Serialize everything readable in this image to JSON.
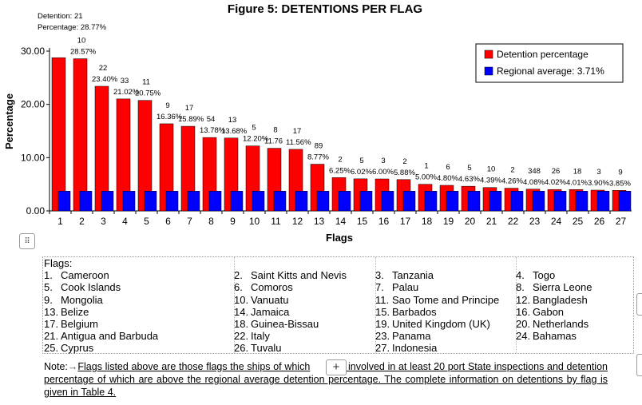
{
  "chart_data": {
    "type": "bar",
    "title": "Figure 5: DETENTIONS PER FLAG",
    "xlabel": "Flags",
    "ylabel": "Percentage",
    "ylim": [
      0,
      30
    ],
    "y_ticks": [
      "0.00",
      "10.00",
      "20.00",
      "30.00"
    ],
    "categories": [
      "1",
      "2",
      "3",
      "4",
      "5",
      "6",
      "7",
      "8",
      "9",
      "10",
      "11",
      "12",
      "13",
      "14",
      "15",
      "16",
      "17",
      "18",
      "19",
      "20",
      "21",
      "22",
      "23",
      "24",
      "25",
      "26",
      "27"
    ],
    "series": [
      {
        "name": "Detention percentage",
        "color": "#ff0000",
        "values": [
          28.77,
          28.57,
          23.4,
          21.02,
          20.75,
          16.36,
          15.89,
          13.78,
          13.68,
          12.2,
          11.76,
          11.56,
          8.77,
          6.25,
          6.02,
          6.0,
          5.88,
          5.0,
          4.8,
          4.63,
          4.39,
          4.26,
          4.08,
          4.02,
          4.01,
          3.9,
          3.85
        ]
      },
      {
        "name": "Regional average: 3.71%",
        "color": "#0000ff",
        "values": [
          3.71,
          3.71,
          3.71,
          3.71,
          3.71,
          3.71,
          3.71,
          3.71,
          3.71,
          3.71,
          3.71,
          3.71,
          3.71,
          3.71,
          3.71,
          3.71,
          3.71,
          3.71,
          3.71,
          3.71,
          3.71,
          3.71,
          3.71,
          3.71,
          3.71,
          3.71,
          3.71
        ]
      }
    ],
    "detentions": [
      "21",
      "10",
      "22",
      "33",
      "11",
      "9",
      "17",
      "54",
      "13",
      "5",
      "8",
      "17",
      "89",
      "2",
      "5",
      "3",
      "2",
      "1",
      "6",
      "5",
      "10",
      "2",
      "348",
      "26",
      "18",
      "3",
      "9"
    ],
    "percent_labels": [
      "28.77%",
      "28.57%",
      "23.40%",
      "21.02%",
      "20.75%",
      "16.36%",
      "15.89%",
      "13.78%",
      "13.68%",
      "12.20%",
      "11.76",
      "11.56%",
      "8.77%",
      "6.25%",
      "6.02%",
      "6.00%",
      "5.88%",
      "5.00%",
      "4.80%",
      "4.63%",
      "4.39%",
      "4.26%",
      "4.08%",
      "4.02%",
      "4.01%",
      "3.90%",
      "3.85%"
    ],
    "first_bar_annotation": {
      "detention": "Detention: 21",
      "percentage": "Percentage: 28.77%"
    },
    "legend_position": "top-right",
    "grid": false
  },
  "flags_table": {
    "heading": "Flags:",
    "items": [
      {
        "num": "1.",
        "name": "Cameroon"
      },
      {
        "num": "2.",
        "name": "Saint Kitts and Nevis"
      },
      {
        "num": "3.",
        "name": "Tanzania"
      },
      {
        "num": "4.",
        "name": "Togo"
      },
      {
        "num": "5.",
        "name": "Cook Islands"
      },
      {
        "num": "6.",
        "name": "Comoros"
      },
      {
        "num": "7.",
        "name": "Palau"
      },
      {
        "num": "8.",
        "name": "Sierra Leone"
      },
      {
        "num": "9.",
        "name": "Mongolia"
      },
      {
        "num": "10.",
        "name": "Vanuatu"
      },
      {
        "num": "11.",
        "name": "Sao Tome and Principe"
      },
      {
        "num": "12.",
        "name": "Bangladesh"
      },
      {
        "num": "13.",
        "name": "Belize"
      },
      {
        "num": "14.",
        "name": "Jamaica"
      },
      {
        "num": "15.",
        "name": "Barbados"
      },
      {
        "num": "16.",
        "name": "Gabon"
      },
      {
        "num": "17.",
        "name": "Belgium"
      },
      {
        "num": "18.",
        "name": "Guinea-Bissau"
      },
      {
        "num": "19.",
        "name": "United Kingdom (UK)"
      },
      {
        "num": "20.",
        "name": "Netherlands"
      },
      {
        "num": "21.",
        "name": "Antigua and Barbuda"
      },
      {
        "num": "22.",
        "name": "Italy"
      },
      {
        "num": "23.",
        "name": "Panama"
      },
      {
        "num": "24.",
        "name": "Bahamas"
      },
      {
        "num": "25.",
        "name": "Cyprus"
      },
      {
        "num": "26.",
        "name": "Tuvalu"
      },
      {
        "num": "27.",
        "name": "Indonesia"
      }
    ]
  },
  "note": {
    "prefix": "Note:",
    "arrow": "→",
    "text_before": "Flags listed above are those flags the ships of which",
    "text_after": "ere involved in at least 20 port State inspections and detention percentage of which are above the regional average detention percentage. The complete information on detentions by flag is given in Table 4."
  },
  "icons": {
    "handle": "move-handle-icon",
    "plus": "plus-icon"
  },
  "glyphs": {
    "handle": "⠿",
    "plus": "+"
  }
}
